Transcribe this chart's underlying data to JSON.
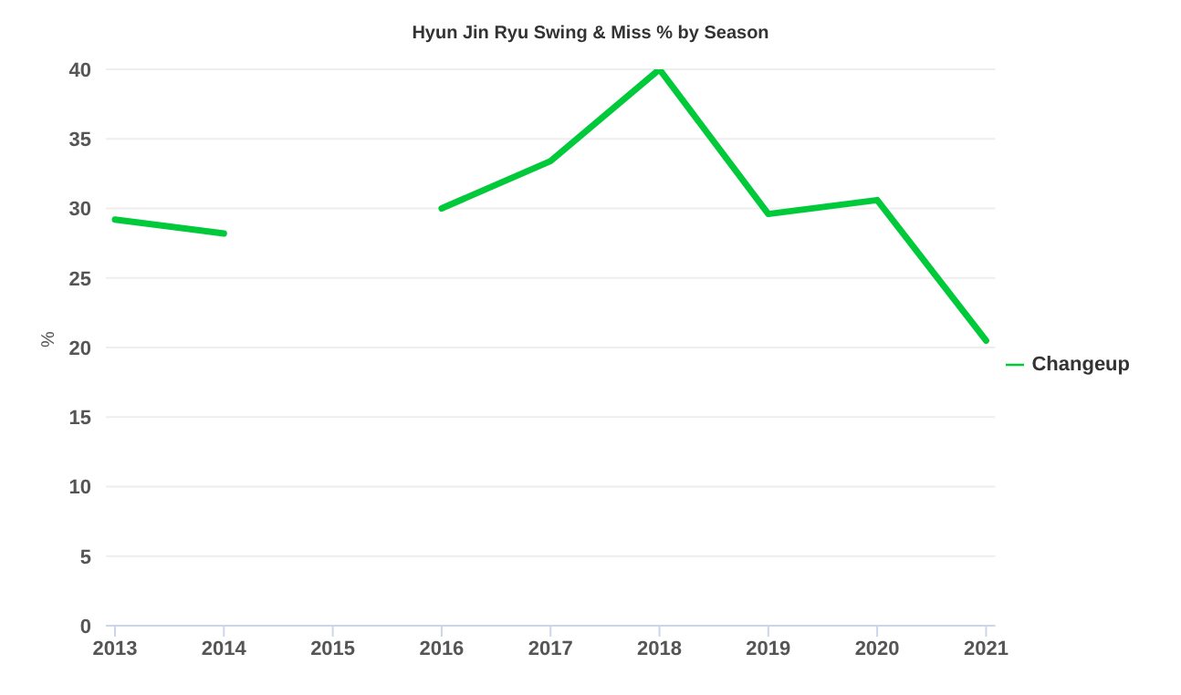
{
  "chart_data": {
    "type": "line",
    "title": "Hyun Jin Ryu Swing & Miss % by Season",
    "ylabel": "%",
    "categories": [
      "2013",
      "2014",
      "2015",
      "2016",
      "2017",
      "2018",
      "2019",
      "2020",
      "2021"
    ],
    "series": [
      {
        "name": "Changeup",
        "color": "#00c93a",
        "values": [
          29.2,
          28.2,
          null,
          30.0,
          33.4,
          40.0,
          29.6,
          30.6,
          20.5
        ]
      }
    ],
    "ylim": [
      0,
      40
    ],
    "yticks": [
      0,
      5,
      10,
      15,
      20,
      25,
      30,
      35,
      40
    ],
    "grid": "y",
    "legend": "right",
    "marker": "none",
    "line_style": "solid"
  }
}
